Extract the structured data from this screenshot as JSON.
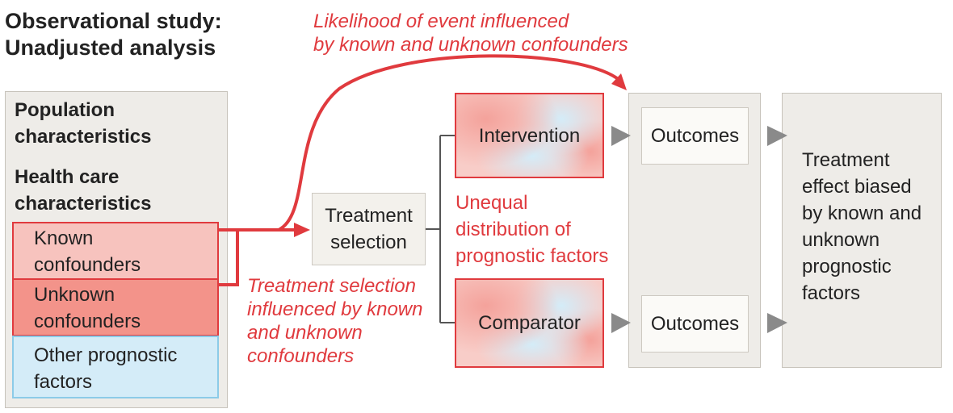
{
  "title": {
    "line1": "Observational study:",
    "line2": "Unadjusted analysis"
  },
  "population_panel": {
    "population_line1": "Population",
    "population_line2": "characteristics",
    "healthcare_line1": "Health care",
    "healthcare_line2": "characteristics",
    "known_line1": "Known",
    "known_line2": "confounders",
    "unknown_line1": "Unknown",
    "unknown_line2": "confounders",
    "other_line1": "Other prognostic",
    "other_line2": "factors"
  },
  "treatment_selection": {
    "line1": "Treatment",
    "line2": "selection"
  },
  "intervention": "Intervention",
  "comparator": "Comparator",
  "outcomes_top": "Outcomes",
  "outcomes_bottom": "Outcomes",
  "annotations": {
    "likelihood_line1": "Likelihood of event influenced",
    "likelihood_line2": "by known and unknown confounders",
    "selection_line1": "Treatment selection",
    "selection_line2": "influenced by known",
    "selection_line3": "and unknown",
    "selection_line4": "confounders",
    "unequal_line1": "Unequal",
    "unequal_line2": "distribution of",
    "unequal_line3": "prognostic factors"
  },
  "result": {
    "line1": "Treatment",
    "line2": "effect biased",
    "line3": "by known and",
    "line4": "unknown",
    "line5": "prognostic",
    "line6": "factors"
  },
  "colors": {
    "accent_red": "#e03a3e",
    "panel_gray": "#eeece8",
    "known_fill": "#f7c3be",
    "unknown_fill": "#f3938a",
    "other_fill": "#d4ecf8",
    "arrow_gray": "#8a8a8a"
  }
}
